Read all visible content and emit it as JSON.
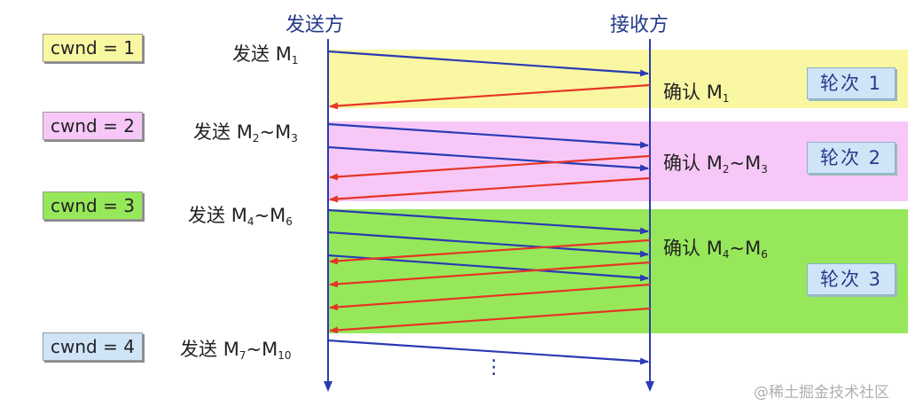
{
  "header": {
    "sender": "发送方",
    "receiver": "接收方"
  },
  "colors": {
    "round1": "#faf7a2",
    "round2": "#f7c8f7",
    "round3": "#96e85a",
    "send_arrow": "#2a3bb3",
    "ack_arrow": "#e53526"
  },
  "cwnd": [
    "cwnd = 1",
    "cwnd = 2",
    "cwnd = 3",
    "cwnd = 4"
  ],
  "send": [
    {
      "prefix": "发送 ",
      "m1": "M",
      "s1": "1",
      "sep": "",
      "m2": "",
      "s2": ""
    },
    {
      "prefix": "发送 ",
      "m1": "M",
      "s1": "2",
      "sep": "~",
      "m2": "M",
      "s2": "3"
    },
    {
      "prefix": "发送 ",
      "m1": "M",
      "s1": "4",
      "sep": "~",
      "m2": "M",
      "s2": "6"
    },
    {
      "prefix": "发送 ",
      "m1": "M",
      "s1": "7",
      "sep": "~",
      "m2": "M",
      "s2": "10"
    }
  ],
  "ack": [
    {
      "prefix": "确认 ",
      "m1": "M",
      "s1": "1",
      "sep": "",
      "m2": "",
      "s2": ""
    },
    {
      "prefix": "确认 ",
      "m1": "M",
      "s1": "2",
      "sep": "~",
      "m2": "M",
      "s2": "3"
    },
    {
      "prefix": "确认 ",
      "m1": "M",
      "s1": "4",
      "sep": "~",
      "m2": "M",
      "s2": "6"
    }
  ],
  "rounds": [
    "轮次 1",
    "轮次 2",
    "轮次 3"
  ],
  "ellipsis": "⋮",
  "watermark": "@稀土掘金技术社区"
}
